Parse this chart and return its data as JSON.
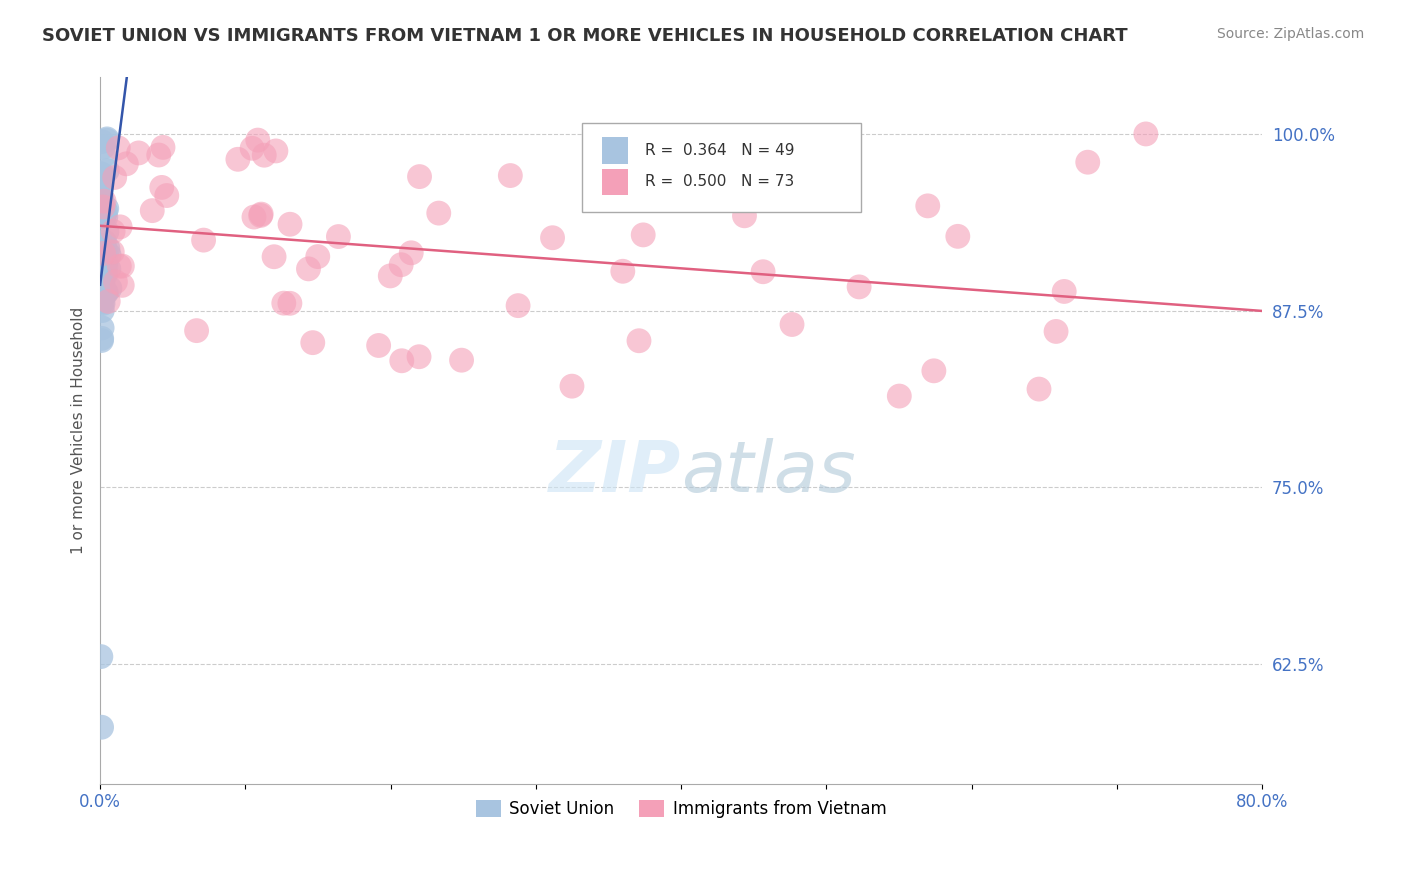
{
  "title": "SOVIET UNION VS IMMIGRANTS FROM VIETNAM 1 OR MORE VEHICLES IN HOUSEHOLD CORRELATION CHART",
  "source": "Source: ZipAtlas.com",
  "ylabel": "1 or more Vehicles in Household",
  "legend1_label": "Soviet Union",
  "legend2_label": "Immigrants from Vietnam",
  "R_soviet": 0.364,
  "N_soviet": 49,
  "R_vietnam": 0.5,
  "N_vietnam": 73,
  "soviet_color": "#a8c4e0",
  "vietnam_color": "#f4a0b8",
  "soviet_line_color": "#3355aa",
  "vietnam_line_color": "#e06080",
  "background_color": "#ffffff",
  "xlim": [
    0.0,
    0.8
  ],
  "ylim": [
    0.54,
    1.04
  ],
  "yticks": [
    0.625,
    0.75,
    0.875,
    1.0
  ],
  "ytick_labels": [
    "62.5%",
    "75.0%",
    "87.5%",
    "100.0%"
  ],
  "xtick_labels_left": "0.0%",
  "xtick_labels_right": "80.0%"
}
